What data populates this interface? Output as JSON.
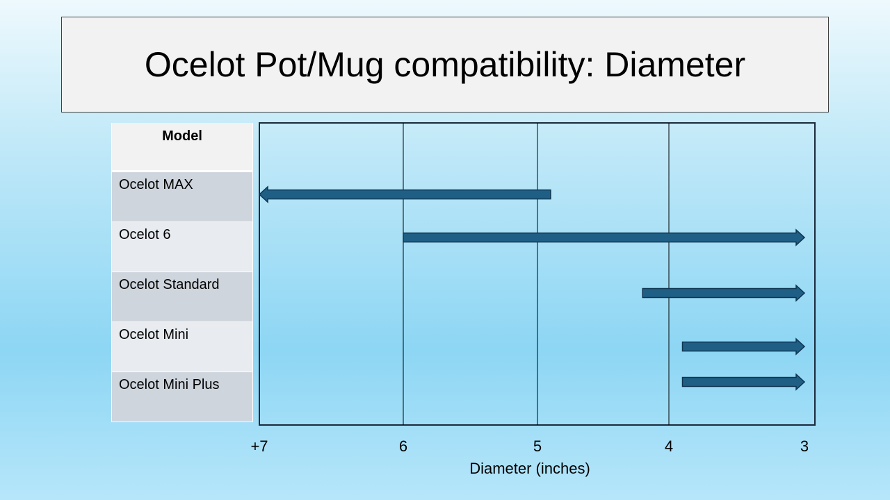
{
  "slide": {
    "title": "Ocelot Pot/Mug compatibility: Diameter"
  },
  "table": {
    "header": "Model",
    "rows": [
      "Ocelot MAX",
      "Ocelot 6",
      "Ocelot Standard",
      "Ocelot Mini",
      "Ocelot Mini Plus"
    ]
  },
  "colors": {
    "arrow_fill": "#1f5f86",
    "arrow_stroke": "#0f3550",
    "plot_border": "#1a2a3a",
    "gridline": "#000000"
  },
  "chart_data": {
    "type": "range-arrow",
    "title": "",
    "xlabel": "Diameter (inches)",
    "xlim": [
      7,
      3
    ],
    "x_reversed": true,
    "x_ticks": [
      {
        "value": 7,
        "label": "+7"
      },
      {
        "value": 6,
        "label": "6"
      },
      {
        "value": 5,
        "label": "5"
      },
      {
        "value": 4,
        "label": "4"
      },
      {
        "value": 3,
        "label": "3"
      }
    ],
    "gridlines_at": [
      6,
      5,
      4
    ],
    "series": [
      {
        "name": "Ocelot MAX",
        "min": 4.9,
        "max": 7,
        "open_end": "max"
      },
      {
        "name": "Ocelot 6",
        "min": 3,
        "max": 6,
        "open_end": "min"
      },
      {
        "name": "Ocelot Standard",
        "min": 3,
        "max": 4.2,
        "open_end": "min"
      },
      {
        "name": "Ocelot Mini",
        "min": 3,
        "max": 3.9,
        "open_end": "min"
      },
      {
        "name": "Ocelot Mini Plus",
        "min": 3,
        "max": 3.9,
        "open_end": "min"
      }
    ]
  }
}
